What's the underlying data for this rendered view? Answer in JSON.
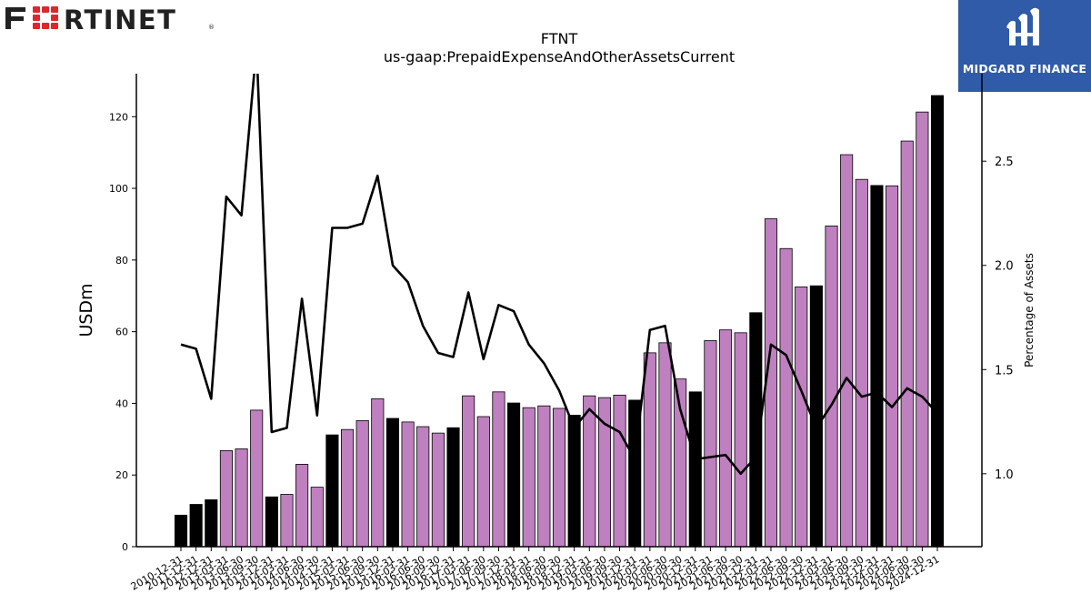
{
  "header": {
    "left_logo": {
      "text": "FURTINET",
      "icon": "fortinet-logo-icon",
      "color": "#222222",
      "accent": "#e0262a"
    },
    "right_logo": {
      "text": "MIDGARD FINANCE",
      "icon": "midgard-logo-icon",
      "background": "#2f5ba8"
    }
  },
  "chart_data": {
    "type": "bar",
    "title": "FTNT",
    "subtitle": "us-gaap:PrepaidExpenseAndOtherAssetsCurrent",
    "ylabel": "USDm",
    "y2label": "Percentage of Assets",
    "ylim": [
      0,
      132
    ],
    "y2lim": [
      0.65,
      2.92
    ],
    "yticks": [
      0,
      20,
      40,
      60,
      80,
      100,
      120
    ],
    "y2ticks": [
      1.0,
      1.5,
      2.0,
      2.5
    ],
    "y2ticklabels": [
      "1.0",
      "1.5",
      "2.0",
      "2.5"
    ],
    "grid": false,
    "colors": {
      "annual_bar": "#000000",
      "quarterly_bar": "#bf80bf",
      "line": "#000000"
    },
    "categories": [
      "2010-12-31",
      "2011-12-31",
      "2012-12-31",
      "2013-03-31",
      "2013-06-30",
      "2013-09-30",
      "2013-12-31",
      "2014-03-31",
      "2014-06-30",
      "2014-09-30",
      "2014-12-31",
      "2015-03-31",
      "2015-06-30",
      "2015-09-30",
      "2015-12-31",
      "2016-03-31",
      "2016-06-30",
      "2016-09-30",
      "2016-12-31",
      "2017-03-31",
      "2017-06-30",
      "2017-09-30",
      "2017-12-31",
      "2018-03-31",
      "2018-06-30",
      "2018-09-30",
      "2018-12-31",
      "2019-03-31",
      "2019-06-30",
      "2019-09-30",
      "2019-12-31",
      "2020-03-31",
      "2020-06-30",
      "2020-09-30",
      "2020-12-31",
      "2021-03-31",
      "2021-06-30",
      "2021-09-30",
      "2021-12-31",
      "2022-03-31",
      "2022-06-30",
      "2022-09-30",
      "2022-12-31",
      "2023-03-31",
      "2023-06-30",
      "2023-09-30",
      "2023-12-31",
      "2024-03-31",
      "2024-06-30",
      "2024-09-30",
      "2024-12-31"
    ],
    "values": [
      8.8,
      11.8,
      13.1,
      26.8,
      27.3,
      38.1,
      13.9,
      14.6,
      23,
      16.6,
      31.2,
      32.7,
      35.2,
      41.3,
      35.8,
      34.8,
      33.5,
      31.7,
      33.2,
      42.1,
      36.3,
      43.2,
      40.1,
      38.8,
      39.3,
      38.6,
      36.7,
      42.1,
      41.6,
      42.3,
      40.9,
      54.1,
      56.9,
      46.8,
      43.2,
      57.5,
      60.5,
      59.7,
      65.3,
      91.5,
      83.2,
      72.5,
      72.8,
      89.5,
      109.4,
      102.5,
      100.8,
      100.7,
      113.2,
      121.3,
      125.9
    ],
    "annual": [
      true,
      true,
      true,
      false,
      false,
      false,
      true,
      false,
      false,
      false,
      true,
      false,
      false,
      false,
      true,
      false,
      false,
      false,
      true,
      false,
      false,
      false,
      true,
      false,
      false,
      false,
      true,
      false,
      false,
      false,
      true,
      false,
      false,
      false,
      true,
      false,
      false,
      false,
      true,
      false,
      false,
      false,
      true,
      false,
      false,
      false,
      true,
      false,
      false,
      false,
      true
    ],
    "pct_assets": [
      1.62,
      1.6,
      1.36,
      2.33,
      2.24,
      3.05,
      1.2,
      1.22,
      1.84,
      1.28,
      2.18,
      2.18,
      2.2,
      2.43,
      2.0,
      1.92,
      1.71,
      1.58,
      1.56,
      1.87,
      1.55,
      1.81,
      1.78,
      1.62,
      1.53,
      1.4,
      1.22,
      1.31,
      1.24,
      1.2,
      1.07,
      1.69,
      1.71,
      1.31,
      1.07,
      1.08,
      1.09,
      1.0,
      1.08,
      1.62,
      1.57,
      1.4,
      1.22,
      1.33,
      1.46,
      1.37,
      1.39,
      1.32,
      1.41,
      1.37,
      1.29
    ]
  }
}
